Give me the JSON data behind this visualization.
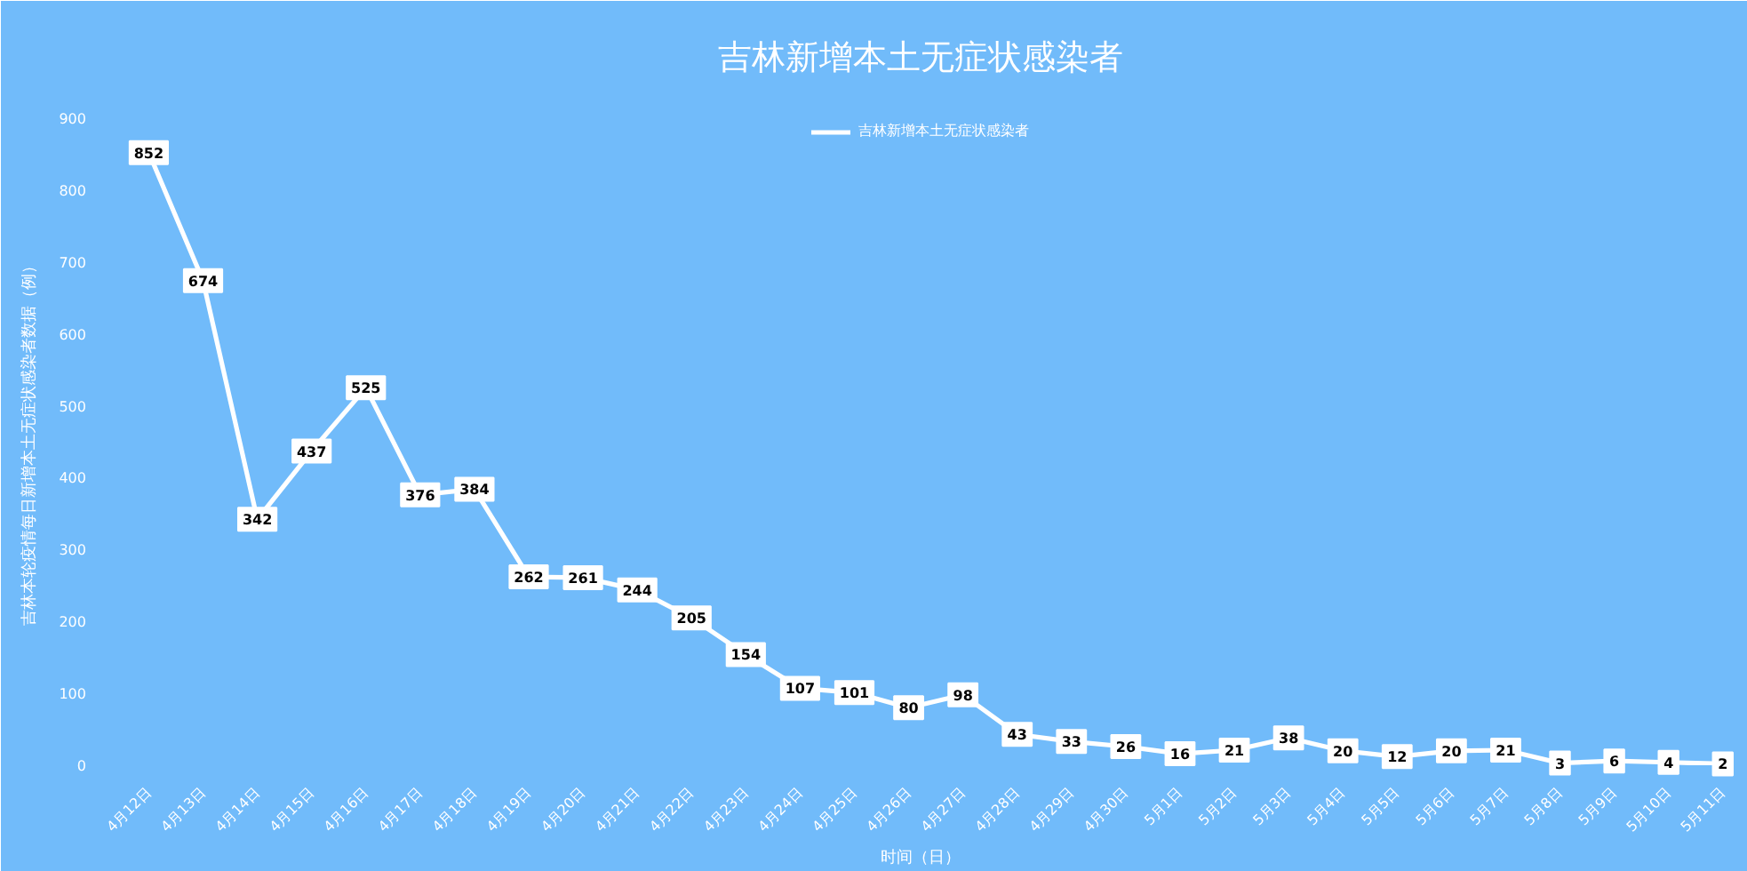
{
  "chart_data": {
    "type": "line",
    "title": "吉林新增本土无症状感染者",
    "xlabel": "时间（日）",
    "ylabel": "吉林本轮疫情每日新增本土无症状感染者数据（例）",
    "categories": [
      "4月12日",
      "4月13日",
      "4月14日",
      "4月15日",
      "4月16日",
      "4月17日",
      "4月18日",
      "4月19日",
      "4月20日",
      "4月21日",
      "4月22日",
      "4月23日",
      "4月24日",
      "4月25日",
      "4月26日",
      "4月27日",
      "4月28日",
      "4月29日",
      "4月30日",
      "5月1日",
      "5月2日",
      "5月3日",
      "5月4日",
      "5月5日",
      "5月6日",
      "5月7日",
      "5月8日",
      "5月9日",
      "5月10日",
      "5月11日"
    ],
    "series": [
      {
        "name": "吉林新增本土无症状感染者",
        "color": "#ffffff",
        "values": [
          852,
          674,
          342,
          437,
          525,
          376,
          384,
          262,
          261,
          244,
          205,
          154,
          107,
          101,
          80,
          98,
          43,
          33,
          26,
          16,
          21,
          38,
          20,
          12,
          20,
          21,
          3,
          6,
          4,
          2
        ]
      }
    ],
    "ylim": [
      0,
      900
    ],
    "yticks": [
      0,
      100,
      200,
      300,
      400,
      500,
      600,
      700,
      800,
      900
    ],
    "grid": false,
    "legend": "top",
    "data_labels": true,
    "marker": "square",
    "line_style": "solid"
  }
}
